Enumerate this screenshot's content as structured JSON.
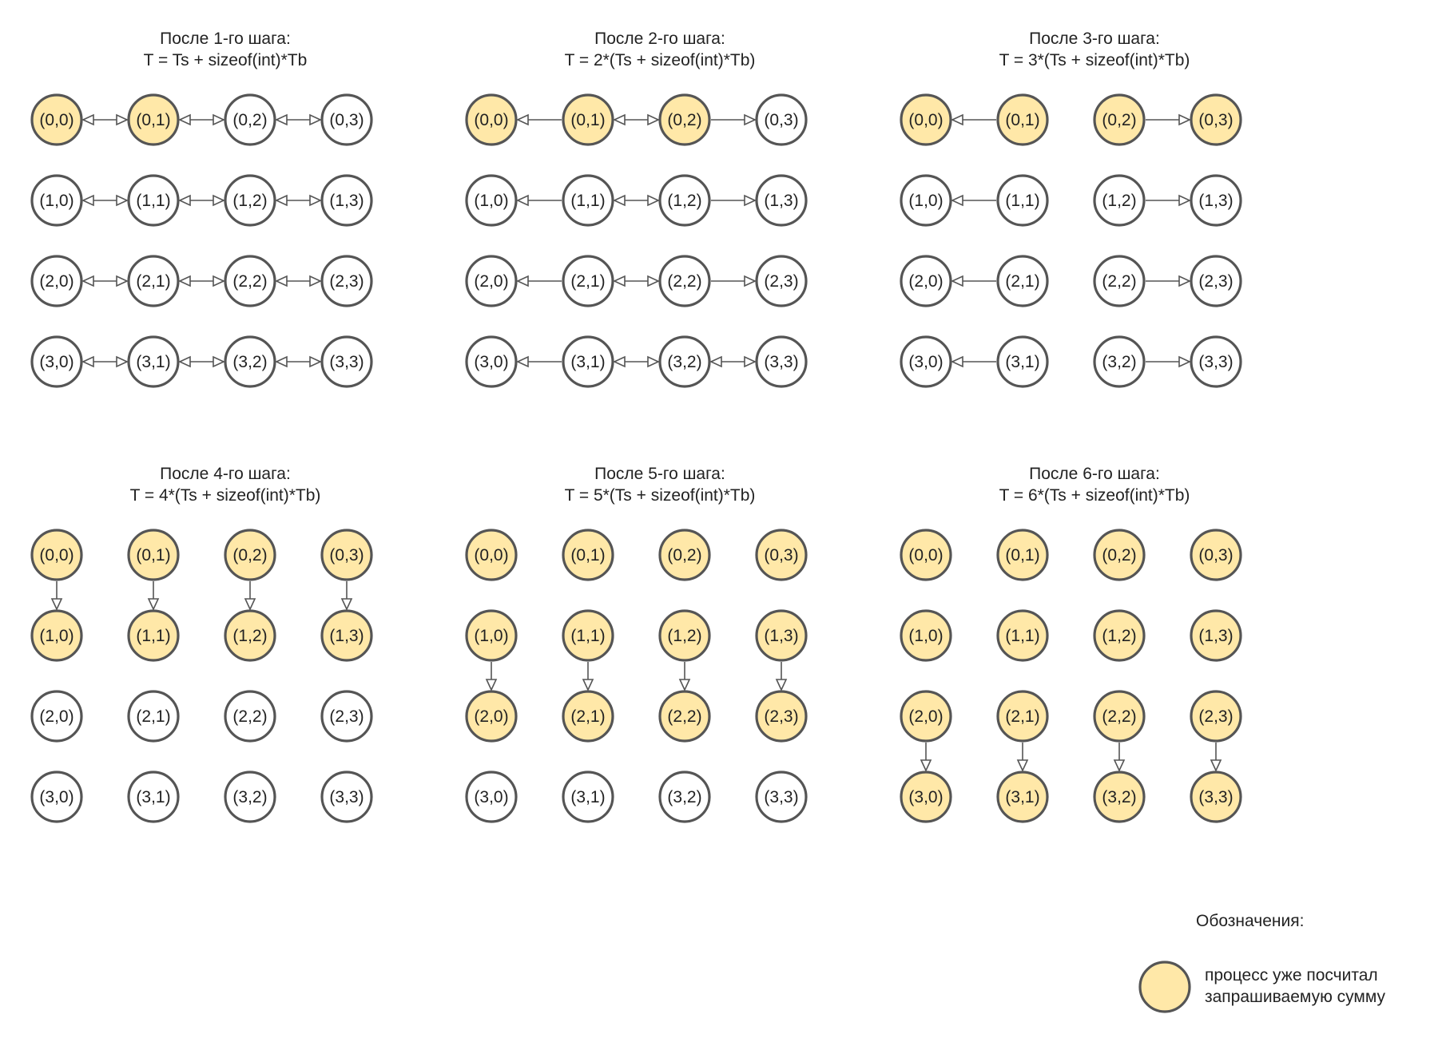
{
  "colors": {
    "computed_fill": "#FFE8A8",
    "pending_fill": "#FFFFFF",
    "stroke": "#555555",
    "text": "#222222"
  },
  "node_labels": [
    [
      "(0,0)",
      "(0,1)",
      "(0,2)",
      "(0,3)"
    ],
    [
      "(1,0)",
      "(1,1)",
      "(1,2)",
      "(1,3)"
    ],
    [
      "(2,0)",
      "(2,1)",
      "(2,2)",
      "(2,3)"
    ],
    [
      "(3,0)",
      "(3,1)",
      "(3,2)",
      "(3,3)"
    ]
  ],
  "panels": [
    {
      "title_line1": "После 1-го шага:",
      "title_line2": "T = Ts + sizeof(int)*Tb",
      "computed": [
        [
          1,
          1,
          0,
          0
        ],
        [
          0,
          0,
          0,
          0
        ],
        [
          0,
          0,
          0,
          0
        ],
        [
          0,
          0,
          0,
          0
        ]
      ],
      "edges": [
        {
          "from": [
            0,
            0
          ],
          "to": [
            0,
            1
          ],
          "dir": "both"
        },
        {
          "from": [
            0,
            1
          ],
          "to": [
            0,
            2
          ],
          "dir": "both"
        },
        {
          "from": [
            0,
            2
          ],
          "to": [
            0,
            3
          ],
          "dir": "both"
        },
        {
          "from": [
            1,
            0
          ],
          "to": [
            1,
            1
          ],
          "dir": "both"
        },
        {
          "from": [
            1,
            1
          ],
          "to": [
            1,
            2
          ],
          "dir": "both"
        },
        {
          "from": [
            1,
            2
          ],
          "to": [
            1,
            3
          ],
          "dir": "both"
        },
        {
          "from": [
            2,
            0
          ],
          "to": [
            2,
            1
          ],
          "dir": "both"
        },
        {
          "from": [
            2,
            1
          ],
          "to": [
            2,
            2
          ],
          "dir": "both"
        },
        {
          "from": [
            2,
            2
          ],
          "to": [
            2,
            3
          ],
          "dir": "both"
        },
        {
          "from": [
            3,
            0
          ],
          "to": [
            3,
            1
          ],
          "dir": "both"
        },
        {
          "from": [
            3,
            1
          ],
          "to": [
            3,
            2
          ],
          "dir": "both"
        },
        {
          "from": [
            3,
            2
          ],
          "to": [
            3,
            3
          ],
          "dir": "both"
        }
      ]
    },
    {
      "title_line1": "После 2-го шага:",
      "title_line2": "T = 2*(Ts + sizeof(int)*Tb)",
      "computed": [
        [
          1,
          1,
          1,
          0
        ],
        [
          0,
          0,
          0,
          0
        ],
        [
          0,
          0,
          0,
          0
        ],
        [
          0,
          0,
          0,
          0
        ]
      ],
      "edges": [
        {
          "from": [
            0,
            1
          ],
          "to": [
            0,
            0
          ],
          "dir": "single"
        },
        {
          "from": [
            0,
            1
          ],
          "to": [
            0,
            2
          ],
          "dir": "both"
        },
        {
          "from": [
            0,
            2
          ],
          "to": [
            0,
            3
          ],
          "dir": "single"
        },
        {
          "from": [
            1,
            1
          ],
          "to": [
            1,
            0
          ],
          "dir": "single"
        },
        {
          "from": [
            1,
            1
          ],
          "to": [
            1,
            2
          ],
          "dir": "both"
        },
        {
          "from": [
            1,
            2
          ],
          "to": [
            1,
            3
          ],
          "dir": "single"
        },
        {
          "from": [
            2,
            1
          ],
          "to": [
            2,
            0
          ],
          "dir": "single"
        },
        {
          "from": [
            2,
            1
          ],
          "to": [
            2,
            2
          ],
          "dir": "both"
        },
        {
          "from": [
            2,
            2
          ],
          "to": [
            2,
            3
          ],
          "dir": "single"
        },
        {
          "from": [
            3,
            1
          ],
          "to": [
            3,
            0
          ],
          "dir": "single"
        },
        {
          "from": [
            3,
            1
          ],
          "to": [
            3,
            2
          ],
          "dir": "both"
        },
        {
          "from": [
            3,
            2
          ],
          "to": [
            3,
            3
          ],
          "dir": "both"
        }
      ]
    },
    {
      "title_line1": "После 3-го шага:",
      "title_line2": "T = 3*(Ts + sizeof(int)*Tb)",
      "computed": [
        [
          1,
          1,
          1,
          1
        ],
        [
          0,
          0,
          0,
          0
        ],
        [
          0,
          0,
          0,
          0
        ],
        [
          0,
          0,
          0,
          0
        ]
      ],
      "edges": [
        {
          "from": [
            0,
            1
          ],
          "to": [
            0,
            0
          ],
          "dir": "single"
        },
        {
          "from": [
            0,
            2
          ],
          "to": [
            0,
            3
          ],
          "dir": "single"
        },
        {
          "from": [
            1,
            1
          ],
          "to": [
            1,
            0
          ],
          "dir": "single"
        },
        {
          "from": [
            1,
            2
          ],
          "to": [
            1,
            3
          ],
          "dir": "single"
        },
        {
          "from": [
            2,
            1
          ],
          "to": [
            2,
            0
          ],
          "dir": "single"
        },
        {
          "from": [
            2,
            2
          ],
          "to": [
            2,
            3
          ],
          "dir": "single"
        },
        {
          "from": [
            3,
            1
          ],
          "to": [
            3,
            0
          ],
          "dir": "single"
        },
        {
          "from": [
            3,
            2
          ],
          "to": [
            3,
            3
          ],
          "dir": "single"
        }
      ]
    },
    {
      "title_line1": "После 4-го шага:",
      "title_line2": "T = 4*(Ts + sizeof(int)*Tb)",
      "computed": [
        [
          1,
          1,
          1,
          1
        ],
        [
          1,
          1,
          1,
          1
        ],
        [
          0,
          0,
          0,
          0
        ],
        [
          0,
          0,
          0,
          0
        ]
      ],
      "edges": [
        {
          "from": [
            0,
            0
          ],
          "to": [
            1,
            0
          ],
          "dir": "single"
        },
        {
          "from": [
            0,
            1
          ],
          "to": [
            1,
            1
          ],
          "dir": "single"
        },
        {
          "from": [
            0,
            2
          ],
          "to": [
            1,
            2
          ],
          "dir": "single"
        },
        {
          "from": [
            0,
            3
          ],
          "to": [
            1,
            3
          ],
          "dir": "single"
        }
      ]
    },
    {
      "title_line1": "После 5-го шага:",
      "title_line2": "T = 5*(Ts + sizeof(int)*Tb)",
      "computed": [
        [
          1,
          1,
          1,
          1
        ],
        [
          1,
          1,
          1,
          1
        ],
        [
          1,
          1,
          1,
          1
        ],
        [
          0,
          0,
          0,
          0
        ]
      ],
      "edges": [
        {
          "from": [
            1,
            0
          ],
          "to": [
            2,
            0
          ],
          "dir": "single"
        },
        {
          "from": [
            1,
            1
          ],
          "to": [
            2,
            1
          ],
          "dir": "single"
        },
        {
          "from": [
            1,
            2
          ],
          "to": [
            2,
            2
          ],
          "dir": "single"
        },
        {
          "from": [
            1,
            3
          ],
          "to": [
            2,
            3
          ],
          "dir": "single"
        }
      ]
    },
    {
      "title_line1": "После 6-го шага:",
      "title_line2": "T = 6*(Ts + sizeof(int)*Tb)",
      "computed": [
        [
          1,
          1,
          1,
          1
        ],
        [
          1,
          1,
          1,
          1
        ],
        [
          1,
          1,
          1,
          1
        ],
        [
          1,
          1,
          1,
          1
        ]
      ],
      "edges": [
        {
          "from": [
            2,
            0
          ],
          "to": [
            3,
            0
          ],
          "dir": "single"
        },
        {
          "from": [
            2,
            1
          ],
          "to": [
            3,
            1
          ],
          "dir": "single"
        },
        {
          "from": [
            2,
            2
          ],
          "to": [
            3,
            2
          ],
          "dir": "single"
        },
        {
          "from": [
            2,
            3
          ],
          "to": [
            3,
            3
          ],
          "dir": "single"
        }
      ]
    }
  ],
  "legend": {
    "title": "Обозначения:",
    "item_line1": "процесс уже посчитал",
    "item_line2": "запрашиваемую сумму"
  }
}
